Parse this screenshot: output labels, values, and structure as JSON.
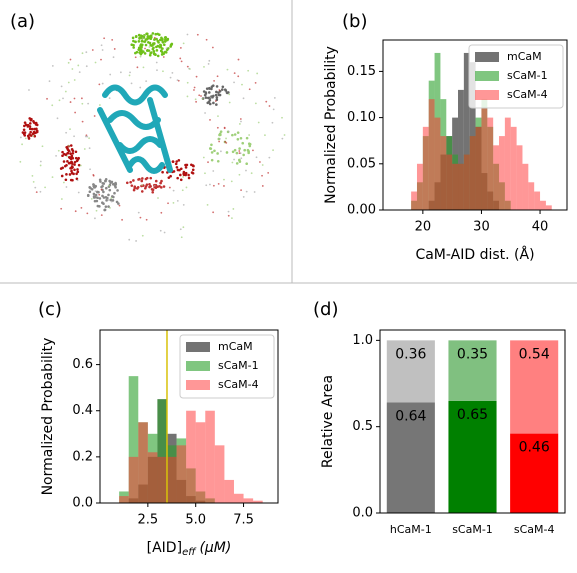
{
  "panel_labels": [
    "(a)",
    "(b)",
    "(c)",
    "(d)"
  ],
  "chart_data": [
    {
      "type": "histogram",
      "x_label": "CaM-AID dist. (Å)",
      "y_label": "Normalized Probability",
      "bins": [
        16,
        17,
        18,
        19,
        20,
        21,
        22,
        23,
        24,
        25,
        26,
        27,
        28,
        29,
        30,
        31,
        32,
        33,
        34,
        35,
        36,
        37,
        38,
        39,
        40,
        41,
        42,
        43,
        44
      ],
      "series": [
        {
          "name": "mCaM",
          "color": "#505050",
          "alpha": 0.8,
          "values": [
            0,
            0,
            0,
            0,
            0,
            0.01,
            0.03,
            0.06,
            0.08,
            0.1,
            0.13,
            0.17,
            0.16,
            0.09,
            0.04,
            0.02,
            0.01,
            0,
            0,
            0,
            0,
            0,
            0,
            0,
            0,
            0,
            0,
            0
          ]
        },
        {
          "name": "sCaM-1",
          "color": "#2ca02c",
          "alpha": 0.6,
          "values": [
            0,
            0,
            0.01,
            0.03,
            0.08,
            0.14,
            0.17,
            0.12,
            0.08,
            0.06,
            0.05,
            0.06,
            0.08,
            0.1,
            0.12,
            0.09,
            0.05,
            0.03,
            0.01,
            0,
            0,
            0,
            0,
            0,
            0,
            0,
            0,
            0
          ]
        },
        {
          "name": "sCaM-4",
          "color": "#ff3030",
          "alpha": 0.5,
          "values": [
            0,
            0,
            0.02,
            0.05,
            0.09,
            0.12,
            0.1,
            0.08,
            0.06,
            0.05,
            0.05,
            0.06,
            0.08,
            0.09,
            0.11,
            0.1,
            0.07,
            0.08,
            0.1,
            0.09,
            0.07,
            0.05,
            0.03,
            0.02,
            0.01,
            0.005,
            0,
            0
          ]
        }
      ],
      "xlim": [
        13.2,
        44.6
      ],
      "ylim": [
        0,
        0.184
      ],
      "xticks": [
        20,
        30,
        40
      ],
      "yticks": [
        {
          "value": 0,
          "label": "0.00"
        },
        {
          "value": 0.05,
          "label": "0.05"
        },
        {
          "value": 0.1,
          "label": "0.10"
        },
        {
          "value": 0.15,
          "label": "0.15"
        }
      ],
      "legend": "upper right"
    },
    {
      "type": "histogram",
      "x_label": "[AID]",
      "x_label_subscript": "eff",
      "x_label_unit": "(μM)",
      "y_label": "Normalized Probability",
      "bins": [
        0.5,
        1,
        1.5,
        2,
        2.5,
        3,
        3.5,
        4,
        4.5,
        5,
        5.5,
        6,
        6.5,
        7,
        7.5,
        8,
        8.5,
        9,
        9.5
      ],
      "series": [
        {
          "name": "mCaM",
          "color": "#505050",
          "alpha": 0.8,
          "values": [
            0,
            0,
            0.02,
            0.08,
            0.2,
            0.45,
            0.3,
            0.1,
            0.03,
            0.01,
            0,
            0,
            0,
            0,
            0,
            0,
            0,
            0
          ]
        },
        {
          "name": "sCaM-1",
          "color": "#2ca02c",
          "alpha": 0.6,
          "values": [
            0,
            0.05,
            0.55,
            0.35,
            0.3,
            0.45,
            0.25,
            0.28,
            0.15,
            0.05,
            0.02,
            0,
            0,
            0,
            0,
            0,
            0,
            0
          ]
        },
        {
          "name": "sCaM-4",
          "color": "#ff3030",
          "alpha": 0.5,
          "values": [
            0,
            0.03,
            0.2,
            0.35,
            0.22,
            0.2,
            0.2,
            0.25,
            0.4,
            0.35,
            0.4,
            0.25,
            0.1,
            0.04,
            0.02,
            0.01,
            0,
            0
          ]
        }
      ],
      "vline": 3.5,
      "vline_color": "#d8c20a",
      "xlim": [
        0,
        9.3
      ],
      "ylim": [
        0,
        0.75
      ],
      "xticks": [
        2.5,
        {
          "value": 5,
          "label": "5.0"
        },
        7.5
      ],
      "yticks": [
        {
          "value": 0,
          "label": "0.0"
        },
        0.2,
        0.4,
        0.6
      ],
      "legend": "upper right"
    },
    {
      "type": "stacked_bar",
      "y_label": "Relative Area",
      "categories": [
        "hCaM-1",
        "sCaM-1",
        "sCaM-4"
      ],
      "series": [
        {
          "values": [
            0.64,
            0.65,
            0.46
          ],
          "colors": [
            "#767676",
            "#008000",
            "#ff0000"
          ]
        },
        {
          "values": [
            0.36,
            0.35,
            0.54
          ],
          "colors": [
            "#c0c0c0",
            "#80c080",
            "#ff8080"
          ]
        }
      ],
      "ylim": [
        0,
        1.06
      ],
      "yticks": [
        {
          "value": 0,
          "label": "0.0"
        },
        {
          "value": 0.5,
          "label": "0.5"
        },
        {
          "value": 1,
          "label": "1.0"
        }
      ]
    }
  ]
}
